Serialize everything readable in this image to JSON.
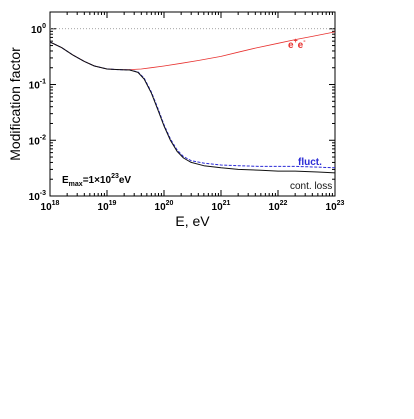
{
  "chart_data": {
    "type": "line",
    "xlabel": "E, eV",
    "ylabel": "Modification factor",
    "xscale": "log",
    "yscale": "log",
    "xlim": [
      1e+18,
      1e+23
    ],
    "ylim": [
      0.001,
      2
    ],
    "x_ticks": [
      {
        "base": "10",
        "exp": "18",
        "value": 1e+18
      },
      {
        "base": "10",
        "exp": "19",
        "value": 1e+19
      },
      {
        "base": "10",
        "exp": "20",
        "value": 1e+20
      },
      {
        "base": "10",
        "exp": "21",
        "value": 1e+21
      },
      {
        "base": "10",
        "exp": "22",
        "value": 1e+22
      },
      {
        "base": "10",
        "exp": "23",
        "value": 1e+23
      }
    ],
    "y_ticks": [
      {
        "base": "10",
        "exp": "-3",
        "value": 0.001
      },
      {
        "base": "10",
        "exp": "-2",
        "value": 0.01
      },
      {
        "base": "10",
        "exp": "-1",
        "value": 0.1
      },
      {
        "base": "10",
        "exp": "0",
        "value": 1
      }
    ],
    "annotation": {
      "prefix": "E",
      "sub": "max",
      "mid": "=1×10",
      "sup": "23",
      "suffix": "eV"
    },
    "reference_line": {
      "y": 1.0,
      "style": "dotted"
    },
    "series": [
      {
        "name": "e",
        "name_sup": "+",
        "name2": "e",
        "name2_sup": "-",
        "color": "#e8312f",
        "x": [
          1e+18,
          1.6e+18,
          2.5e+18,
          4e+18,
          6e+18,
          1e+19,
          1.6e+19,
          2.5e+19,
          4e+19,
          6e+19,
          1e+20,
          2e+20,
          4e+20,
          1e+21,
          2e+21,
          4e+21,
          1e+22,
          2e+22,
          4e+22,
          1e+23
        ],
        "y": [
          0.58,
          0.46,
          0.34,
          0.26,
          0.215,
          0.19,
          0.185,
          0.185,
          0.19,
          0.2,
          0.215,
          0.24,
          0.27,
          0.32,
          0.38,
          0.45,
          0.55,
          0.64,
          0.73,
          0.88
        ]
      },
      {
        "name": "fluct.",
        "color": "#2b2bd6",
        "x": [
          1e+18,
          1.6e+18,
          2.5e+18,
          4e+18,
          6e+18,
          1e+19,
          1.6e+19,
          2.5e+19,
          3.5e+19,
          4.5e+19,
          6e+19,
          8e+19,
          1e+20,
          1.3e+20,
          1.7e+20,
          2.2e+20,
          3e+20,
          5e+20,
          1e+21,
          2e+21,
          5e+21,
          1e+22,
          2e+22,
          5e+22,
          1e+23
        ],
        "y": [
          0.58,
          0.46,
          0.34,
          0.26,
          0.215,
          0.19,
          0.185,
          0.183,
          0.168,
          0.13,
          0.073,
          0.035,
          0.019,
          0.0105,
          0.0067,
          0.0051,
          0.0043,
          0.0039,
          0.0036,
          0.0035,
          0.0034,
          0.0034,
          0.0034,
          0.0033,
          0.0032
        ]
      },
      {
        "name": "cont. loss",
        "color": "#111111",
        "x": [
          1e+18,
          1.6e+18,
          2.5e+18,
          4e+18,
          6e+18,
          1e+19,
          1.6e+19,
          2.5e+19,
          3.5e+19,
          4.5e+19,
          6e+19,
          8e+19,
          1e+20,
          1.3e+20,
          1.7e+20,
          2.2e+20,
          3e+20,
          5e+20,
          1e+21,
          2e+21,
          5e+21,
          1e+22,
          2e+22,
          5e+22,
          1e+23
        ],
        "y": [
          0.58,
          0.46,
          0.34,
          0.26,
          0.215,
          0.19,
          0.185,
          0.182,
          0.165,
          0.125,
          0.07,
          0.033,
          0.018,
          0.0099,
          0.0063,
          0.0048,
          0.004,
          0.0035,
          0.0032,
          0.003,
          0.0029,
          0.0028,
          0.0028,
          0.0027,
          0.0026
        ]
      }
    ]
  }
}
